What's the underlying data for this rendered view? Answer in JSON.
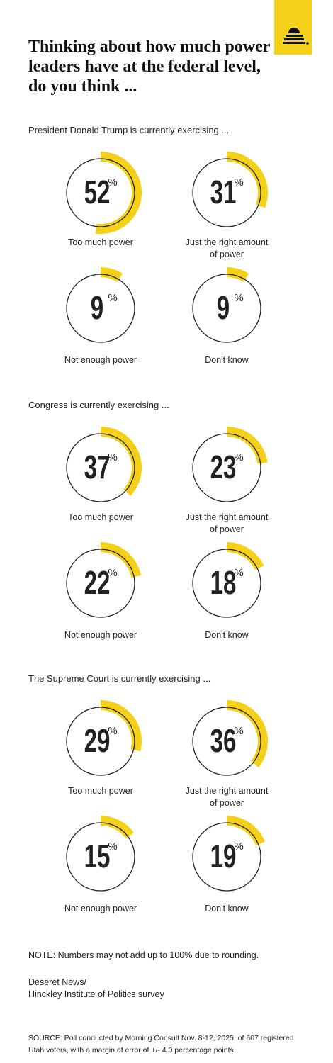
{
  "title": "Thinking about how much power leaders have at the federal level, do you think ...",
  "chart_data": [
    {
      "type": "gauge",
      "title": "President Donald Trump is currently exercising ...",
      "unit": "%",
      "color": "#f5d019",
      "categories": [
        "Too much power",
        "Just the right amount of power",
        "Not enough power",
        "Don't know"
      ],
      "values": [
        52,
        31,
        9,
        9
      ]
    },
    {
      "type": "gauge",
      "title": "Congress is currently exercising ...",
      "unit": "%",
      "color": "#f5d019",
      "categories": [
        "Too much power",
        "Just the right amount of power",
        "Not enough power",
        "Don't know"
      ],
      "values": [
        37,
        23,
        22,
        18
      ]
    },
    {
      "type": "gauge",
      "title": "The Supreme Court is currently exercising ...",
      "unit": "%",
      "color": "#f5d019",
      "categories": [
        "Too much power",
        "Just the right amount of power",
        "Not enough power",
        "Don't know"
      ],
      "values": [
        29,
        36,
        15,
        19
      ]
    }
  ],
  "note": "NOTE: Numbers may not add up to 100% due to rounding.",
  "credit": [
    "Deseret News/",
    "Hinckley Institute of Politics survey"
  ],
  "source": "SOURCE: Poll conducted by Morning Consult Nov. 8-12, 2025, of 607 registered Utah voters, with a margin of error of +/- 4.0 percentage points."
}
